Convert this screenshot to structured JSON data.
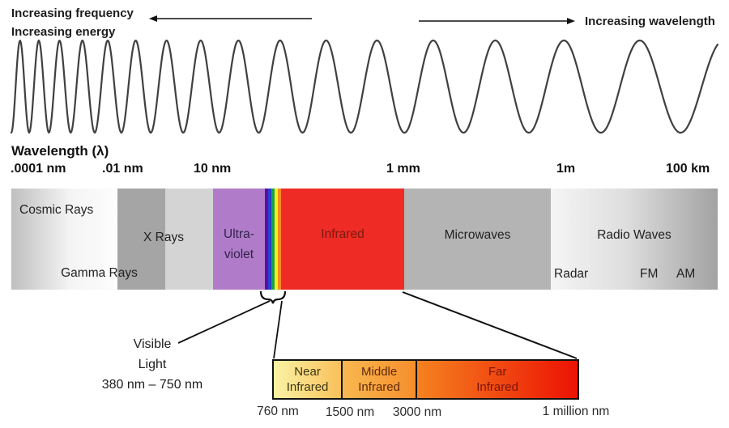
{
  "top": {
    "increasing_frequency": "Increasing frequency",
    "increasing_energy": "Increasing energy",
    "increasing_wavelength": "Increasing wavelength"
  },
  "axis": {
    "title": "Wavelength (λ)",
    "ticks": [
      ".0001 nm",
      ".01 nm",
      "10 nm",
      "1 mm",
      "1m",
      "100 km"
    ]
  },
  "spectrum": {
    "cosmic": "Cosmic Rays",
    "xray": "X Rays",
    "gamma": "Gamma Rays",
    "uv_line1": "Ultra-",
    "uv_line2": "violet",
    "infrared": "Infrared",
    "microwaves": "Microwaves",
    "radio": "Radio Waves",
    "radar": "Radar",
    "fm": "FM",
    "am": "AM"
  },
  "visible_light": {
    "line1": "Visible",
    "line2": "Light",
    "range": "380 nm – 750 nm"
  },
  "infrared_detail": {
    "cells": [
      {
        "line1": "Near",
        "line2": "Infrared"
      },
      {
        "line1": "Middle",
        "line2": "Infrared"
      },
      {
        "line1": "Far",
        "line2": "Infrared"
      }
    ],
    "ticks": [
      "760 nm",
      "1500 nm",
      "3000 nm",
      "1 million nm"
    ]
  },
  "colors": {
    "ultraviolet": "#b07cc9",
    "infrared_band": "#ee2b25",
    "xray_band": "#a5a5a5",
    "microwave_band": "#b4b4b4",
    "visible_stripes": [
      "#5a0f9e",
      "#2840cd",
      "#15a24c",
      "#f4ee1f",
      "#f78c1e"
    ],
    "ir_detail_gradient": [
      "#faf3a4",
      "#f9c05a",
      "#f68e2c",
      "#ec1204"
    ],
    "wave_stroke": "#404040"
  }
}
